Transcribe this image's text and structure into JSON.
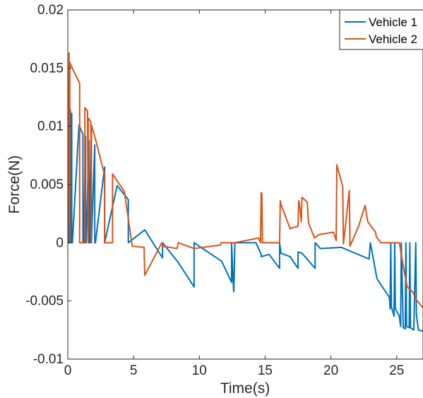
{
  "chart_data": {
    "type": "line",
    "title": "",
    "xlabel": "Time(s)",
    "ylabel": "Force(N)",
    "xlim": [
      0,
      27
    ],
    "ylim": [
      -0.01,
      0.02
    ],
    "xticks": [
      0,
      5,
      10,
      15,
      20,
      25
    ],
    "xtick_labels": [
      "0",
      "5",
      "10",
      "15",
      "20",
      "25"
    ],
    "yticks": [
      -0.01,
      -0.005,
      0,
      0.005,
      0.01,
      0.015,
      0.02
    ],
    "ytick_labels": [
      "-0.01",
      "-0.005",
      "0",
      "0.005",
      "0.01",
      "0.015",
      "0.02"
    ],
    "grid": false,
    "legend_position": "top-right",
    "series": [
      {
        "name": "Vehicle 1",
        "color": "#0072BD",
        "x": [
          0,
          0.05,
          0.1,
          0.1,
          0.15,
          0.2,
          0.2,
          0.25,
          0.3,
          0.3,
          0.35,
          0.85,
          1.15,
          1.15,
          1.2,
          1.35,
          1.35,
          1.4,
          1.6,
          1.6,
          1.65,
          1.75,
          1.75,
          1.8,
          2.05,
          2.05,
          2.1,
          2.8,
          2.8,
          3.75,
          4.6,
          4.6,
          5.85,
          7.2,
          7.2,
          8.4,
          9.6,
          9.6,
          11.7,
          12.45,
          12.45,
          12.6,
          12.62,
          12.7,
          12.7,
          14.3,
          14.7,
          14.7,
          15.3,
          16.1,
          16.1,
          16.2,
          16.9,
          17.5,
          17.5,
          17.8,
          18.8,
          18.8,
          19.2,
          20.8,
          22.9,
          23.0,
          23.5,
          24.45,
          24.5,
          24.55,
          24.6,
          24.8,
          24.85,
          24.9,
          25.2,
          25.3,
          25.35,
          25.5,
          25.65,
          25.7,
          25.75,
          25.95,
          26.0,
          26.05,
          26.3,
          26.45,
          26.5,
          26.65,
          27.0
        ],
        "y": [
          0,
          0,
          0.0114,
          0,
          0,
          0.0114,
          0,
          0,
          0.0111,
          0,
          0,
          0.0101,
          0.0093,
          0,
          0,
          0.0091,
          0,
          0,
          0.0088,
          0,
          0,
          0.0088,
          0,
          0,
          0.0084,
          0,
          0,
          0.0065,
          0,
          0.0049,
          0.0037,
          0,
          0.0011,
          -0.0013,
          0,
          -0.0017,
          -0.0038,
          0,
          -0.0016,
          -0.0034,
          0,
          -0.0041,
          -0.0042,
          0,
          0,
          0,
          -0.001,
          -0.0012,
          -0.001,
          -0.0022,
          0,
          -0.0009,
          -0.0012,
          -0.0022,
          -0.0008,
          -0.0009,
          -0.0022,
          0,
          -0.0005,
          -0.0004,
          -0.0014,
          0,
          -0.0031,
          -0.0047,
          -0.0057,
          0,
          -0.0055,
          -0.0063,
          0,
          -0.0057,
          -0.0063,
          -0.0072,
          0,
          -0.0073,
          -0.0074,
          0,
          -0.0072,
          -0.0073,
          0,
          -0.0073,
          -0.0075,
          0,
          -0.0062,
          -0.0075,
          -0.0076
        ]
      },
      {
        "name": "Vehicle 2",
        "color": "#D95319",
        "x": [
          0,
          0.1,
          0.15,
          0.15,
          0.3,
          0.9,
          0.9,
          1.3,
          1.3,
          1.5,
          1.55,
          1.55,
          1.75,
          1.8,
          1.8,
          2.15,
          2.8,
          2.8,
          2.85,
          3.4,
          3.4,
          4.3,
          4.9,
          5.8,
          5.85,
          7.15,
          7.2,
          8.3,
          8.4,
          9.6,
          11.6,
          11.65,
          12.7,
          14.5,
          14.65,
          14.7,
          14.75,
          14.8,
          15.2,
          16.1,
          16.15,
          16.2,
          16.9,
          17.1,
          17.5,
          17.55,
          17.6,
          17.75,
          17.8,
          18.2,
          18.3,
          18.75,
          19.1,
          20.2,
          20.4,
          20.45,
          20.9,
          20.95,
          21.4,
          21.45,
          22.1,
          22.6,
          22.8,
          23.4,
          23.45,
          23.8,
          24.5,
          25.2,
          25.5,
          25.8,
          26.2,
          26.5,
          27.0
        ],
        "y": [
          0,
          0.0163,
          0,
          0.0155,
          0.0151,
          0.0137,
          0,
          0,
          0.0116,
          0.0113,
          0,
          0.0107,
          0.0104,
          0,
          0.0101,
          0.0087,
          0.0058,
          0,
          0,
          0,
          0.0059,
          0.0044,
          -0.0003,
          -0.0004,
          -0.0028,
          0,
          -0.0003,
          -0.0005,
          0,
          -0.0005,
          -0.0002,
          0,
          0,
          0.0004,
          0,
          0.0043,
          0.0042,
          0,
          0,
          0,
          0.0036,
          0.0033,
          0.0012,
          0.0013,
          0.0014,
          0.0036,
          0.0034,
          0.0018,
          0.0039,
          0.0035,
          0.0017,
          0.0004,
          0.0007,
          0.0009,
          0.0002,
          0.0067,
          0.0048,
          -0.0001,
          0.0045,
          -0.0003,
          0.0014,
          0.0032,
          0.0018,
          0.0009,
          0.0005,
          0,
          0,
          0,
          -0.002,
          -0.0038,
          -0.0042,
          -0.0049,
          -0.0056
        ]
      }
    ]
  }
}
